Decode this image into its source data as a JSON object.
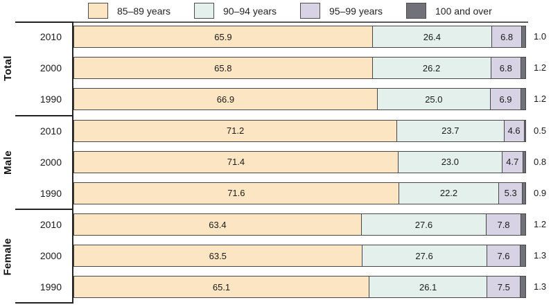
{
  "chart_data": {
    "type": "bar",
    "stacked": true,
    "orientation": "horizontal",
    "unit": "percent",
    "xlim": [
      0,
      100
    ],
    "grid": false,
    "legend_position": "top",
    "series_labels": [
      "85–89 years",
      "90–94 years",
      "95–99 years",
      "100 and over"
    ],
    "series_colors": [
      "#fbe5c3",
      "#e3f0eb",
      "#d8d3e4",
      "#71717a"
    ],
    "groups": [
      {
        "label": "Total",
        "rows": [
          {
            "year": "2010",
            "values": [
              65.9,
              26.4,
              6.8,
              1.0
            ]
          },
          {
            "year": "2000",
            "values": [
              65.8,
              26.2,
              6.8,
              1.2
            ]
          },
          {
            "year": "1990",
            "values": [
              66.9,
              25.0,
              6.9,
              1.2
            ]
          }
        ]
      },
      {
        "label": "Male",
        "rows": [
          {
            "year": "2010",
            "values": [
              71.2,
              23.7,
              4.6,
              0.5
            ]
          },
          {
            "year": "2000",
            "values": [
              71.4,
              23.0,
              4.7,
              0.8
            ]
          },
          {
            "year": "1990",
            "values": [
              71.6,
              22.2,
              5.3,
              0.9
            ]
          }
        ]
      },
      {
        "label": "Female",
        "rows": [
          {
            "year": "2010",
            "values": [
              63.4,
              27.6,
              7.8,
              1.2
            ]
          },
          {
            "year": "2000",
            "values": [
              63.5,
              27.6,
              7.6,
              1.3
            ]
          },
          {
            "year": "1990",
            "values": [
              65.1,
              26.1,
              7.5,
              1.3
            ]
          }
        ]
      }
    ]
  }
}
